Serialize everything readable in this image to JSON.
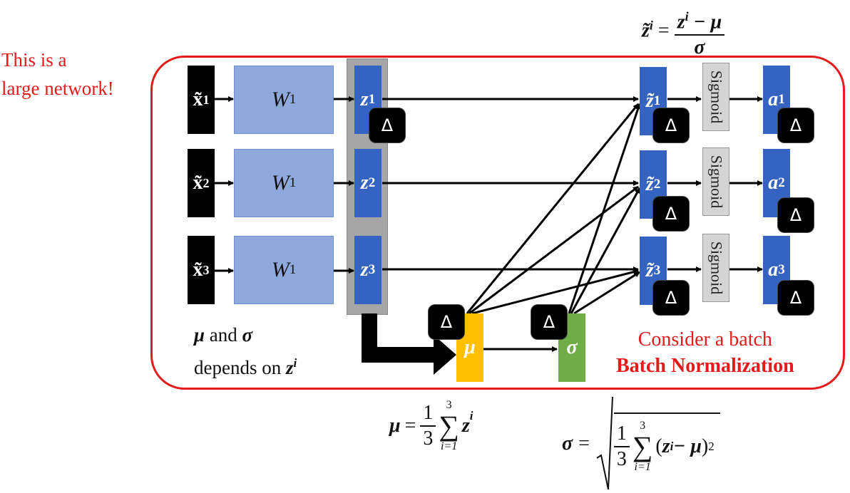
{
  "note": {
    "line1": "This is a",
    "line2": "large network!"
  },
  "inputs": [
    {
      "base": "x̃",
      "sup": "1"
    },
    {
      "base": "x̃",
      "sup": "2"
    },
    {
      "base": "x̃",
      "sup": "3"
    }
  ],
  "weights": [
    {
      "base": "W",
      "sup": "1"
    },
    {
      "base": "W",
      "sup": "1"
    },
    {
      "base": "W",
      "sup": "1"
    }
  ],
  "z": [
    {
      "base": "z",
      "sup": "1"
    },
    {
      "base": "z",
      "sup": "2"
    },
    {
      "base": "z",
      "sup": "3"
    }
  ],
  "znorm": [
    {
      "base": "z̃",
      "sup": "1"
    },
    {
      "base": "z̃",
      "sup": "2"
    },
    {
      "base": "z̃",
      "sup": "3"
    }
  ],
  "sigmoid_label": "Sigmoid",
  "a": [
    {
      "base": "a",
      "sup": "1"
    },
    {
      "base": "a",
      "sup": "2"
    },
    {
      "base": "a",
      "sup": "3"
    }
  ],
  "delta_symbol": "Δ",
  "mu_label": "μ",
  "sigma_label": "σ",
  "depends": {
    "mu": "μ",
    "and": "and",
    "sigma": "σ",
    "line2": "depends on",
    "z": "z",
    "zsup": "i"
  },
  "batch": {
    "line1": "Consider a batch",
    "line2": "Batch Normalization"
  },
  "formula_top": {
    "lhs": "z̃",
    "lhs_sup": "i",
    "equals": "=",
    "num": "z",
    "num_sup": "i",
    "minus_mu": " − μ",
    "den": "σ"
  },
  "formula_mu": {
    "lhs": "μ",
    "equals": "=",
    "one": "1",
    "three": "3",
    "sum": "∑",
    "upper": "3",
    "lower": "i=1",
    "z": "z",
    "zsup": "i"
  },
  "formula_sigma": {
    "lhs": "σ",
    "equals": "=",
    "one": "1",
    "three": "3",
    "sum": "∑",
    "upper": "3",
    "lower": "i=1",
    "paren_open": "(",
    "z": "z",
    "zsup": "i",
    "minus_mu": " − μ",
    "paren_close": ")",
    "sq": "2"
  },
  "colors": {
    "red": "#e31b1b",
    "blue": "#3563c2",
    "weight": "#8fa9dc",
    "mu": "#ffc000",
    "sigma": "#70ad47"
  }
}
